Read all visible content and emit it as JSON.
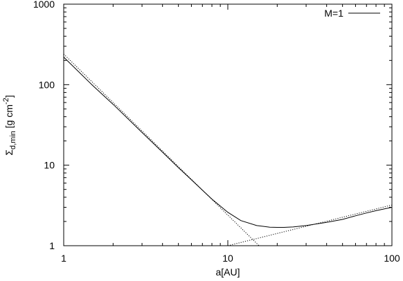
{
  "chart_data": {
    "type": "line",
    "xlabel": "a[AU]",
    "ylabel": {
      "base": "Σ",
      "subscript": "d,min",
      "unit_open": " [g cm",
      "unit_exp": "-2",
      "unit_close": "]"
    },
    "x_scale": "log",
    "y_scale": "log",
    "xlim": [
      1,
      100
    ],
    "ylim": [
      1,
      1000
    ],
    "x_ticks": [
      1,
      10,
      100
    ],
    "x_tick_labels": [
      "1",
      "10",
      "100"
    ],
    "y_ticks": [
      1,
      10,
      100,
      1000
    ],
    "y_tick_labels": [
      "1",
      "10",
      "100",
      "1000"
    ],
    "legend_position": "top-right",
    "series": [
      {
        "name": "M=1",
        "style": "solid",
        "color": "#000000",
        "x": [
          1,
          1.5,
          2,
          3,
          4,
          5,
          6,
          7,
          8,
          10,
          12,
          15,
          18,
          20,
          22,
          25,
          30,
          40,
          50,
          60,
          70,
          80,
          100
        ],
        "y": [
          220,
          98,
          57,
          25.5,
          14.5,
          9.3,
          6.6,
          4.9,
          3.8,
          2.6,
          2.05,
          1.78,
          1.7,
          1.69,
          1.69,
          1.71,
          1.78,
          1.95,
          2.12,
          2.35,
          2.55,
          2.72,
          3.0
        ]
      },
      {
        "style": "dotted",
        "color": "#000000",
        "x": [
          1,
          15.5
        ],
        "y": [
          240,
          1
        ]
      },
      {
        "style": "dotted",
        "color": "#000000",
        "x": [
          10,
          100
        ],
        "y": [
          1.0,
          3.2
        ]
      }
    ]
  }
}
